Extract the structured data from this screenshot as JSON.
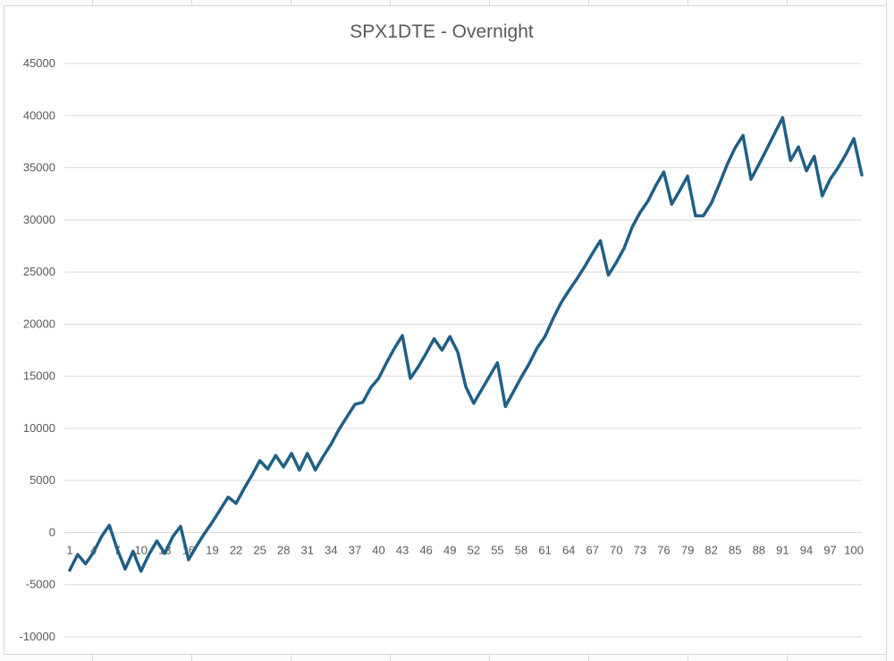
{
  "chart_data": {
    "type": "line",
    "title": "SPX1DTE - Overnight",
    "xlabel": "",
    "ylabel": "",
    "ylim": [
      -10000,
      45000
    ],
    "y_ticks": [
      "-10000",
      "-5000",
      "0",
      "5000",
      "10000",
      "15000",
      "20000",
      "25000",
      "30000",
      "35000",
      "40000",
      "45000"
    ],
    "x_tick_labels": [
      "1",
      "4",
      "7",
      "10",
      "13",
      "16",
      "19",
      "22",
      "25",
      "28",
      "31",
      "34",
      "37",
      "40",
      "43",
      "46",
      "49",
      "52",
      "55",
      "58",
      "61",
      "64",
      "67",
      "70",
      "73",
      "76",
      "79",
      "82",
      "85",
      "88",
      "91",
      "94",
      "97",
      "100"
    ],
    "grid": true,
    "legend": "none",
    "line_color": "#1f5f86",
    "series": [
      {
        "x": [
          1,
          2,
          3,
          4,
          5,
          6,
          7,
          8,
          9,
          10,
          11,
          12,
          13,
          14,
          15,
          16,
          17,
          18,
          19,
          20,
          21,
          22,
          23,
          24,
          25,
          26,
          27,
          28,
          29,
          30,
          31,
          32,
          33,
          34,
          35,
          36,
          37,
          38,
          39,
          40,
          41,
          42,
          43,
          44,
          45,
          46,
          47,
          48,
          49,
          50,
          51,
          52,
          53,
          54,
          55,
          56,
          57,
          58,
          59,
          60,
          61,
          62,
          63,
          64,
          65,
          66,
          67,
          68,
          69,
          70,
          71,
          72,
          73,
          74,
          75,
          76,
          77,
          78,
          79,
          80,
          81,
          82,
          83,
          84,
          85,
          86,
          87,
          88,
          89,
          90,
          91,
          92,
          93,
          94,
          95,
          96,
          97,
          98,
          99,
          100,
          101
        ],
        "values": [
          -3600,
          -2100,
          -3000,
          -1900,
          -400,
          700,
          -1600,
          -3500,
          -1800,
          -3700,
          -2100,
          -800,
          -2000,
          -400,
          600,
          -2600,
          -1300,
          -100,
          1000,
          2200,
          3400,
          2800,
          4200,
          5500,
          6900,
          6100,
          7400,
          6300,
          7600,
          6000,
          7600,
          6000,
          7300,
          8500,
          9900,
          11100,
          12300,
          12500,
          13900,
          14800,
          16300,
          17700,
          18900,
          14800,
          15900,
          17200,
          18600,
          17500,
          18800,
          17300,
          14000,
          12400,
          13700,
          15000,
          16300,
          12100,
          13500,
          14900,
          16200,
          17700,
          18800,
          20500,
          22000,
          23200,
          24300,
          25500,
          26800,
          28000,
          24700,
          25900,
          27300,
          29300,
          30700,
          31800,
          33300,
          34600,
          31500,
          32800,
          34200,
          30400,
          30400,
          31600,
          33400,
          35300,
          36900,
          38100,
          33900,
          35300,
          36800,
          38300,
          39800,
          35700,
          37000,
          34700,
          36100,
          32300,
          33900,
          35000,
          36300,
          37800,
          34300
        ]
      }
    ]
  }
}
